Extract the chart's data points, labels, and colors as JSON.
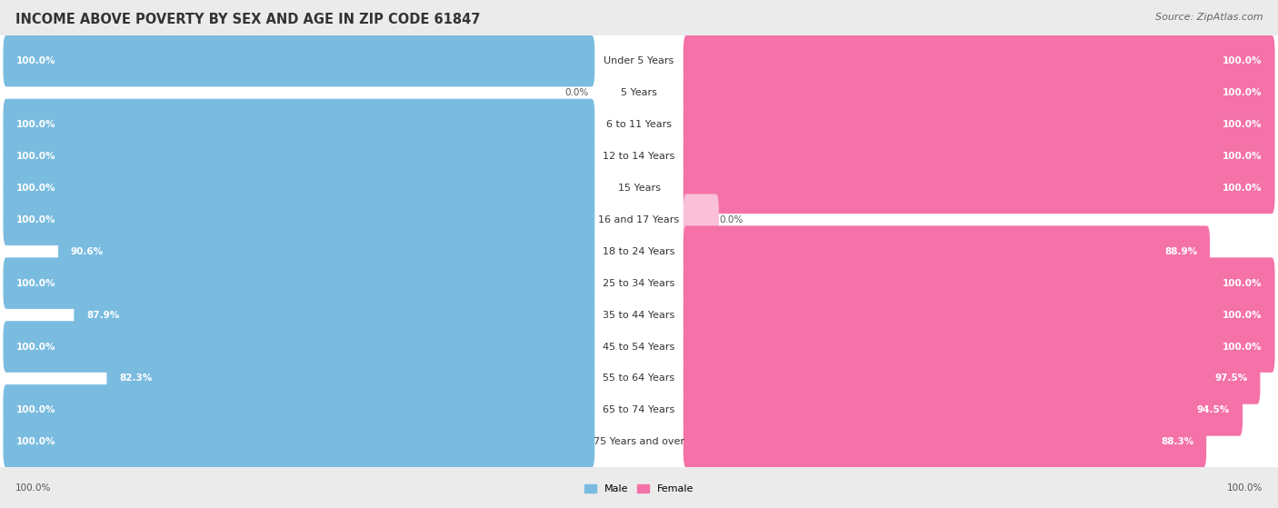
{
  "title": "INCOME ABOVE POVERTY BY SEX AND AGE IN ZIP CODE 61847",
  "source": "Source: ZipAtlas.com",
  "categories": [
    "Under 5 Years",
    "5 Years",
    "6 to 11 Years",
    "12 to 14 Years",
    "15 Years",
    "16 and 17 Years",
    "18 to 24 Years",
    "25 to 34 Years",
    "35 to 44 Years",
    "45 to 54 Years",
    "55 to 64 Years",
    "65 to 74 Years",
    "75 Years and over"
  ],
  "male_values": [
    100.0,
    0.0,
    100.0,
    100.0,
    100.0,
    100.0,
    90.6,
    100.0,
    87.9,
    100.0,
    82.3,
    100.0,
    100.0
  ],
  "female_values": [
    100.0,
    100.0,
    100.0,
    100.0,
    100.0,
    0.0,
    88.9,
    100.0,
    100.0,
    100.0,
    97.5,
    94.5,
    88.3
  ],
  "male_color": "#7abce0",
  "female_color": "#f472a8",
  "male_color_light": "#c8e4f5",
  "female_color_light": "#f9c0d8",
  "male_label": "Male",
  "female_label": "Female",
  "bg_color": "#ebebeb",
  "row_bg_color": "#f5f5f5",
  "title_fontsize": 10.5,
  "label_fontsize": 8.0,
  "value_fontsize": 7.5,
  "source_fontsize": 8.0
}
